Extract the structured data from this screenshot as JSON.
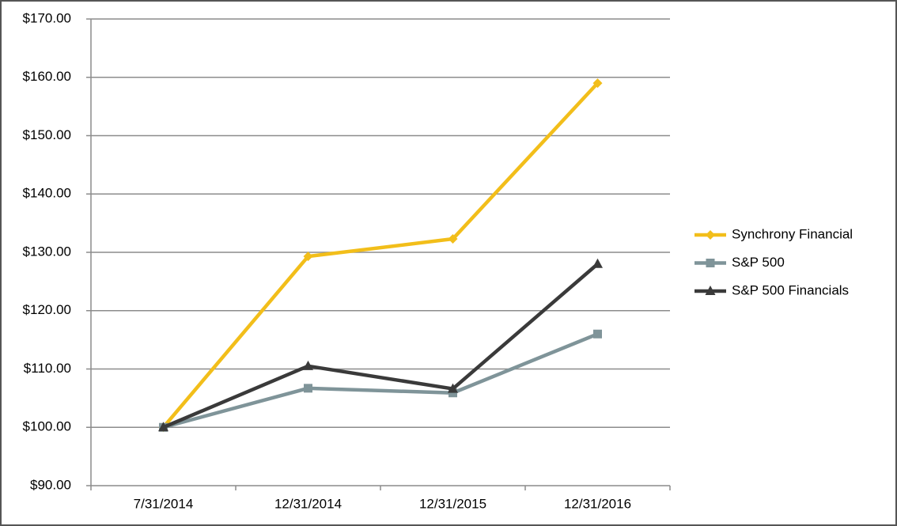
{
  "chart_data": {
    "type": "line",
    "categories": [
      "7/31/2014",
      "12/31/2014",
      "12/31/2015",
      "12/31/2016"
    ],
    "series": [
      {
        "name": "Synchrony Financial",
        "color": "#f2be1a",
        "marker": "diamond",
        "values": [
          100,
          129.3,
          132.3,
          159
        ]
      },
      {
        "name": "S&P 500",
        "color": "#7f9499",
        "marker": "square",
        "values": [
          100,
          106.7,
          105.9,
          116
        ]
      },
      {
        "name": "S&P 500 Financials",
        "color": "#3a3a3a",
        "marker": "triangle",
        "values": [
          100,
          110.5,
          106.6,
          128
        ]
      }
    ],
    "ylim": [
      90,
      170
    ],
    "yticks": [
      {
        "value": 90,
        "label": "$90.00"
      },
      {
        "value": 100,
        "label": "$100.00"
      },
      {
        "value": 110,
        "label": "$110.00"
      },
      {
        "value": 120,
        "label": "$120.00"
      },
      {
        "value": 130,
        "label": "$130.00"
      },
      {
        "value": 140,
        "label": "$140.00"
      },
      {
        "value": 150,
        "label": "$150.00"
      },
      {
        "value": 160,
        "label": "$160.00"
      },
      {
        "value": 170,
        "label": "$170.00"
      }
    ],
    "grid": true,
    "legend": "right"
  }
}
